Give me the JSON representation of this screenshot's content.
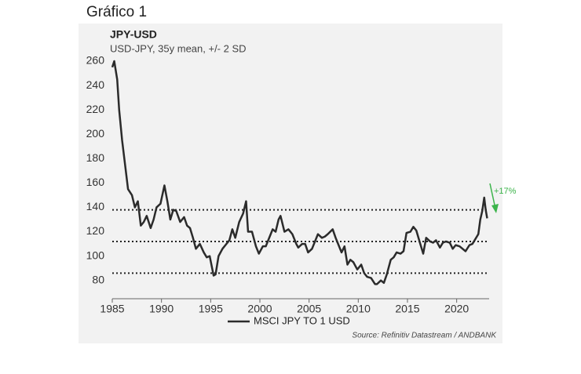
{
  "figure_label": "Gráfico 1",
  "chart_data": {
    "type": "line",
    "title": "JPY-USD",
    "subtitle": "USD-JPY, 35y mean, +/- 2 SD",
    "source": "Source: Refinitiv Datastream / ANDBANK",
    "annotation": "+17%",
    "annotation_color": "#3cb44b",
    "reference_lines": [
      138,
      112,
      86
    ],
    "xlim": [
      1985,
      2023.3
    ],
    "xticks": [
      1985,
      1990,
      1995,
      2000,
      2005,
      2010,
      2015,
      2020
    ],
    "ylim": [
      65,
      260
    ],
    "yticks": [
      80,
      100,
      120,
      140,
      160,
      180,
      200,
      220,
      240,
      260
    ],
    "series": [
      {
        "name": "MSCI JPY TO 1 USD",
        "color": "#2b2b2b",
        "x": [
          1985.0,
          1985.2,
          1985.5,
          1985.7,
          1986.0,
          1986.3,
          1986.6,
          1987.0,
          1987.3,
          1987.6,
          1987.9,
          1988.2,
          1988.5,
          1988.9,
          1989.2,
          1989.5,
          1989.9,
          1990.3,
          1990.6,
          1990.9,
          1991.2,
          1991.5,
          1991.9,
          1992.3,
          1992.6,
          1992.9,
          1993.2,
          1993.5,
          1993.9,
          1994.3,
          1994.6,
          1994.9,
          1995.3,
          1995.5,
          1995.8,
          1996.2,
          1996.5,
          1996.9,
          1997.2,
          1997.5,
          1997.9,
          1998.3,
          1998.6,
          1998.8,
          1999.2,
          1999.6,
          1999.9,
          2000.3,
          2000.6,
          2000.9,
          2001.3,
          2001.6,
          2001.9,
          2002.1,
          2002.5,
          2002.9,
          2003.3,
          2003.7,
          2003.9,
          2004.3,
          2004.6,
          2004.9,
          2005.3,
          2005.9,
          2006.3,
          2006.6,
          2006.9,
          2007.4,
          2007.7,
          2007.9,
          2008.3,
          2008.6,
          2008.9,
          2009.2,
          2009.5,
          2009.9,
          2010.3,
          2010.6,
          2010.9,
          2011.3,
          2011.7,
          2011.9,
          2012.3,
          2012.6,
          2012.9,
          2013.3,
          2013.6,
          2013.9,
          2014.3,
          2014.6,
          2014.9,
          2015.3,
          2015.6,
          2015.9,
          2016.3,
          2016.6,
          2016.9,
          2017.3,
          2017.6,
          2017.9,
          2018.3,
          2018.6,
          2018.9,
          2019.3,
          2019.6,
          2019.9,
          2020.3,
          2020.6,
          2020.9,
          2021.3,
          2021.6,
          2021.9,
          2022.2,
          2022.4,
          2022.6,
          2022.8,
          2022.95,
          2023.1
        ],
        "values": [
          255,
          260,
          245,
          220,
          195,
          175,
          155,
          150,
          140,
          145,
          125,
          128,
          133,
          123,
          130,
          140,
          143,
          158,
          145,
          130,
          138,
          137,
          128,
          132,
          125,
          123,
          115,
          106,
          110,
          103,
          99,
          100,
          84,
          85,
          100,
          106,
          109,
          113,
          122,
          115,
          128,
          135,
          145,
          120,
          120,
          108,
          102,
          108,
          108,
          114,
          122,
          120,
          130,
          133,
          120,
          122,
          118,
          110,
          107,
          110,
          110,
          103,
          106,
          118,
          115,
          116,
          118,
          122,
          115,
          111,
          103,
          108,
          93,
          97,
          95,
          89,
          93,
          86,
          83,
          82,
          77,
          77,
          80,
          78,
          85,
          97,
          99,
          103,
          102,
          104,
          119,
          120,
          124,
          121,
          110,
          102,
          115,
          112,
          111,
          113,
          107,
          111,
          112,
          111,
          106,
          109,
          108,
          106,
          104,
          109,
          110,
          114,
          118,
          130,
          137,
          148,
          138,
          131
        ]
      }
    ]
  }
}
